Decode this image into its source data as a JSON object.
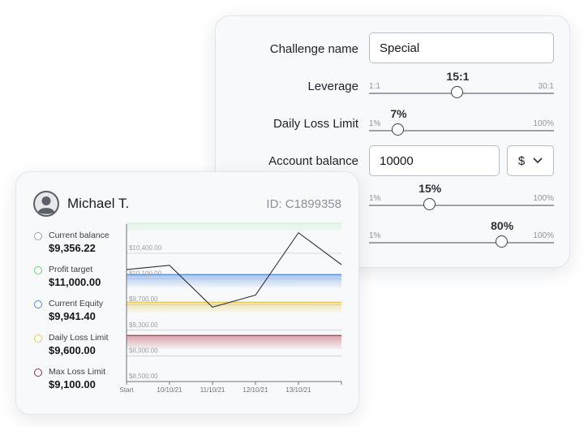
{
  "settings": {
    "challenge_name": {
      "label": "Challenge name",
      "value": "Special"
    },
    "leverage": {
      "label": "Leverage",
      "min": "1:1",
      "max": "30:1",
      "value": "15:1",
      "fraction": 0.48
    },
    "daily_loss_limit": {
      "label": "Daily Loss Limit",
      "min": "1%",
      "max": "100%",
      "value": "7%",
      "fraction": 0.16
    },
    "account_balance": {
      "label": "Account balance",
      "value": "10000",
      "currency": "$"
    },
    "slider_a": {
      "min": "1%",
      "max": "100%",
      "value": "15%",
      "fraction": 0.33
    },
    "slider_b": {
      "min": "1%",
      "max": "100%",
      "value": "80%",
      "fraction": 0.72
    }
  },
  "profile": {
    "name": "Michael T.",
    "id": "ID: C1899358",
    "legend": [
      {
        "label": "Current balance",
        "amount": "$9,356.22",
        "color": "#9aa0a6"
      },
      {
        "label": "Profit target",
        "amount": "$11,000.00",
        "color": "#63cf6a"
      },
      {
        "label": "Current Equity",
        "amount": "$9,941.40",
        "color": "#4a88db"
      },
      {
        "label": "Daily Loss Limit",
        "amount": "$9,600.00",
        "color": "#e9c94a"
      },
      {
        "label": "Max Loss Limit",
        "amount": "$9,100.00",
        "color": "#8a2d3f"
      }
    ]
  },
  "chart_data": {
    "type": "line",
    "x": [
      "Start",
      "10/10/21",
      "11/10/21",
      "12/10/21",
      "13/10/21",
      ""
    ],
    "y_ticks": [
      "$10,400.00",
      "$10,100.00",
      "$9,700.00",
      "$9,300.00",
      "$8,900.00",
      "$8,500.00"
    ],
    "series": [
      {
        "values": [
          9980,
          10040,
          9450,
          9620,
          10500,
          10050
        ]
      }
    ],
    "bands": [
      {
        "from": 10530,
        "to": 10920,
        "color": "#63cf6a"
      },
      {
        "from": 9730,
        "to": 9910,
        "color": "#4a88db"
      },
      {
        "from": 9370,
        "to": 9520,
        "color": "#e9c94a"
      },
      {
        "from": 8860,
        "to": 9050,
        "color": "#b53a4c"
      }
    ],
    "ylim": [
      8400,
      10600
    ],
    "grid": true
  }
}
